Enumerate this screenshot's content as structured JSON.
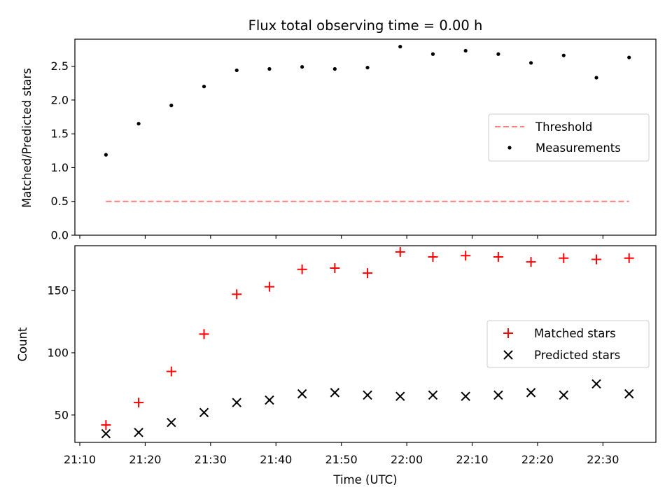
{
  "chart_data": [
    {
      "type": "scatter",
      "title": "Flux total observing time = 0.00 h",
      "ylabel": "Matched/Predicted stars",
      "xlabel": "",
      "ylim": [
        0,
        2.9
      ],
      "yticks": [
        "0.0",
        "0.5",
        "1.0",
        "1.5",
        "2.0",
        "2.5"
      ],
      "grid": false,
      "legend_position": "center-right",
      "series": [
        {
          "name": "Threshold",
          "style": "dashed-line",
          "color": "#ff7f7f",
          "x": [
            "21:14",
            "22:34"
          ],
          "y": [
            0.5,
            0.5
          ]
        },
        {
          "name": "Measurements",
          "style": "dot",
          "color": "#000000",
          "x": [
            "21:14",
            "21:19",
            "21:24",
            "21:29",
            "21:34",
            "21:39",
            "21:44",
            "21:49",
            "21:54",
            "21:59",
            "22:04",
            "22:09",
            "22:14",
            "22:19",
            "22:24",
            "22:29",
            "22:34"
          ],
          "y": [
            1.19,
            1.65,
            1.92,
            2.2,
            2.44,
            2.46,
            2.49,
            2.46,
            2.48,
            2.79,
            2.68,
            2.73,
            2.68,
            2.55,
            2.66,
            2.33,
            2.63
          ]
        }
      ]
    },
    {
      "type": "scatter",
      "title": "",
      "ylabel": "Count",
      "xlabel": "Time (UTC)",
      "ylim": [
        28,
        186
      ],
      "yticks": [
        "50",
        "100",
        "150"
      ],
      "xlim": [
        "21:09",
        "22:38"
      ],
      "xticks": [
        "21:10",
        "21:20",
        "21:30",
        "21:40",
        "21:50",
        "22:00",
        "22:10",
        "22:20",
        "22:30"
      ],
      "grid": false,
      "legend_position": "center-right",
      "series": [
        {
          "name": "Matched stars",
          "marker": "plus",
          "color": "#ff0000",
          "x": [
            "21:14",
            "21:19",
            "21:24",
            "21:29",
            "21:34",
            "21:39",
            "21:44",
            "21:49",
            "21:54",
            "21:59",
            "22:04",
            "22:09",
            "22:14",
            "22:19",
            "22:24",
            "22:29",
            "22:34"
          ],
          "y": [
            42,
            60,
            85,
            115,
            147,
            153,
            167,
            168,
            164,
            181,
            177,
            178,
            177,
            173,
            176,
            175,
            176
          ]
        },
        {
          "name": "Predicted stars",
          "marker": "x",
          "color": "#000000",
          "x": [
            "21:14",
            "21:19",
            "21:24",
            "21:29",
            "21:34",
            "21:39",
            "21:44",
            "21:49",
            "21:54",
            "21:59",
            "22:04",
            "22:09",
            "22:14",
            "22:19",
            "22:24",
            "22:29",
            "22:34"
          ],
          "y": [
            35,
            36,
            44,
            52,
            60,
            62,
            67,
            68,
            66,
            65,
            66,
            65,
            66,
            68,
            66,
            75,
            67
          ]
        }
      ]
    }
  ]
}
